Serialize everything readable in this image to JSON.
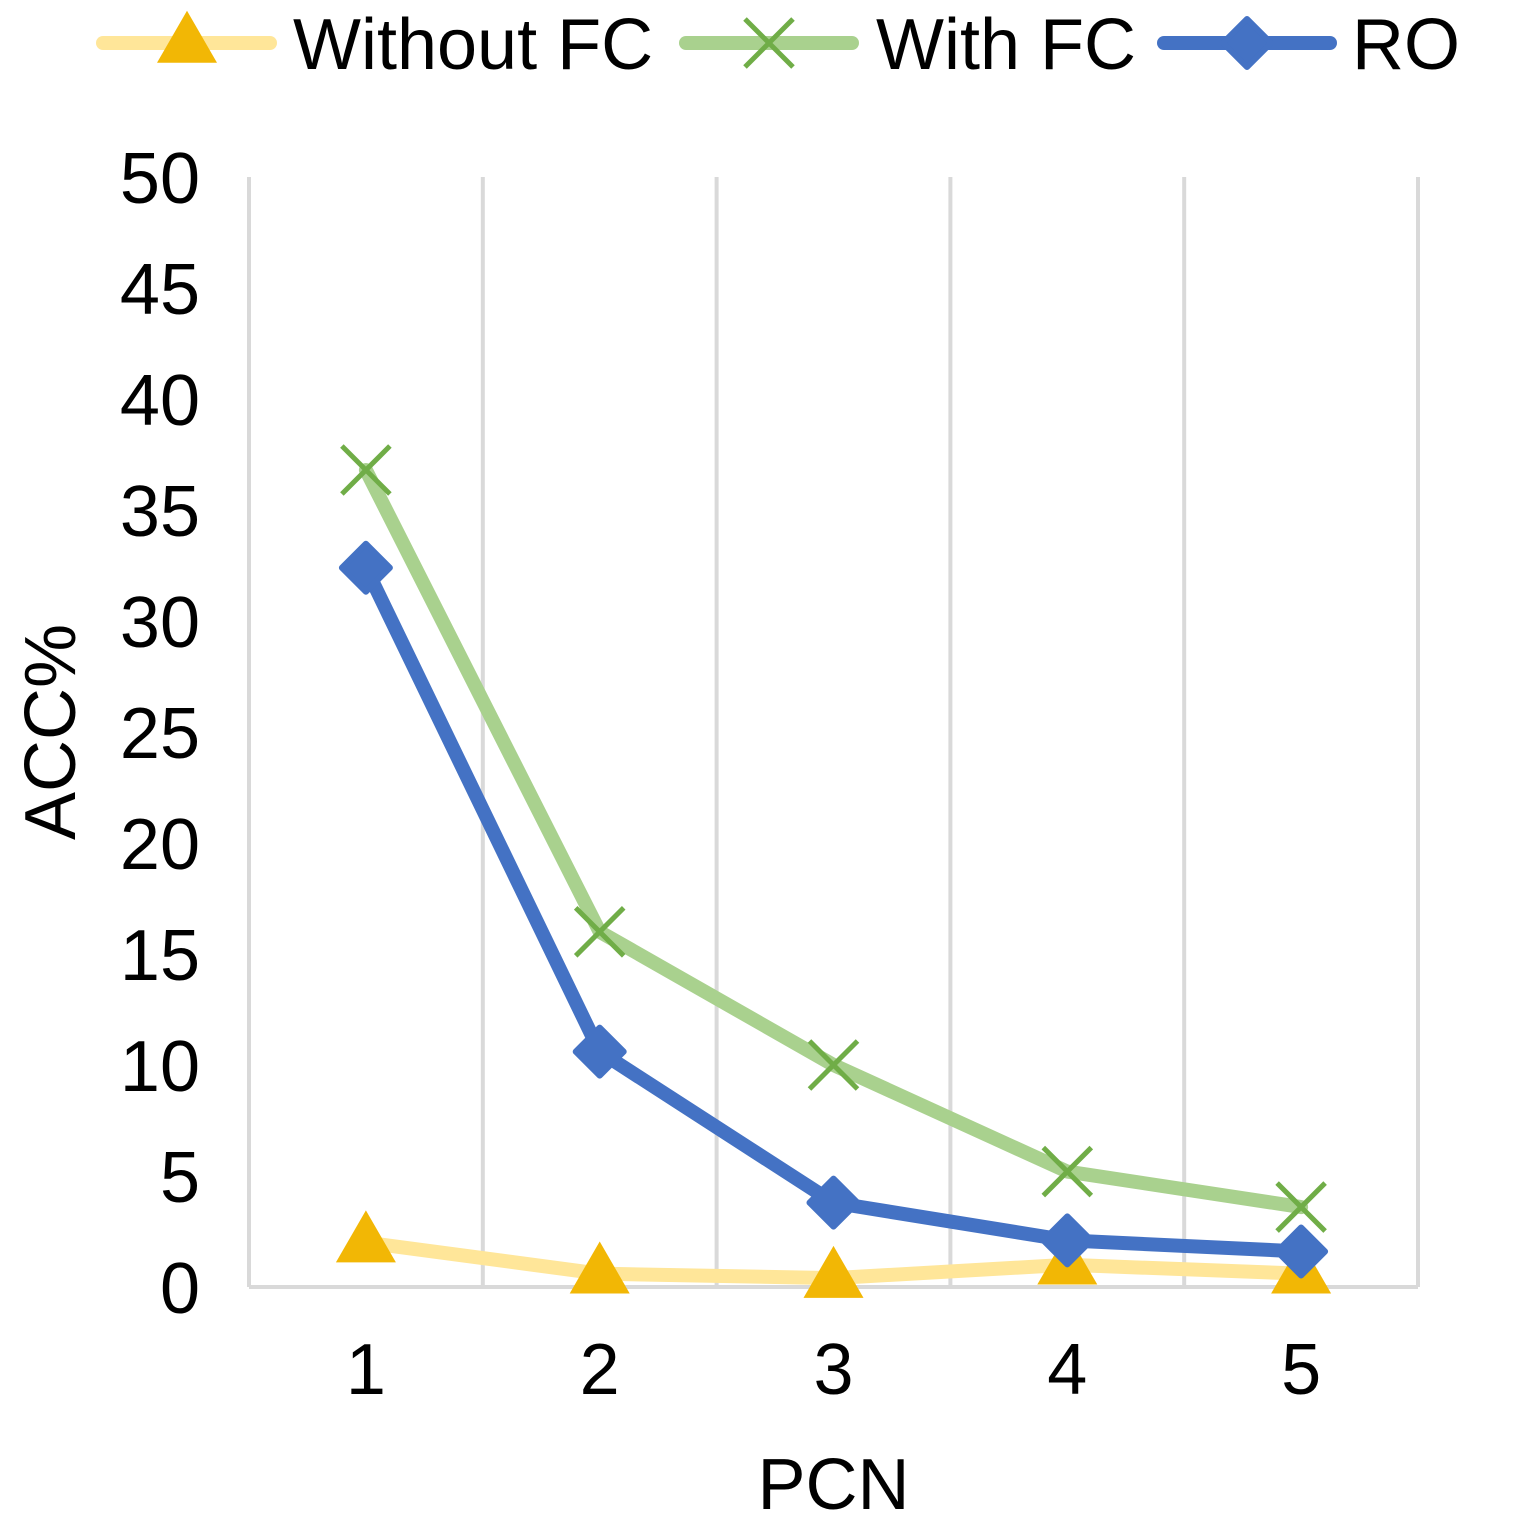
{
  "chart_data": {
    "type": "line",
    "title": "",
    "xlabel": "PCN",
    "ylabel": "ACC%",
    "categories": [
      "1",
      "2",
      "3",
      "4",
      "5"
    ],
    "ylim": [
      0,
      50
    ],
    "yticks": [
      "0",
      "5",
      "10",
      "15",
      "20",
      "25",
      "30",
      "35",
      "40",
      "45",
      "50"
    ],
    "grid": "vertical",
    "legend_position": "top",
    "series": [
      {
        "name": "Without FC",
        "values": [
          2.0,
          0.6,
          0.4,
          1.0,
          0.6
        ],
        "line_color": "#FFE699",
        "marker_color": "#F2B705",
        "marker": "triangle"
      },
      {
        "name": "With FC",
        "values": [
          36.8,
          16.0,
          10.0,
          5.2,
          3.6
        ],
        "line_color": "#A9D18E",
        "marker_color": "#70AD47",
        "marker": "x"
      },
      {
        "name": "RO",
        "values": [
          32.4,
          10.6,
          3.8,
          2.1,
          1.6
        ],
        "line_color": "#4472C4",
        "marker_color": "#4472C4",
        "marker": "diamond"
      }
    ]
  }
}
